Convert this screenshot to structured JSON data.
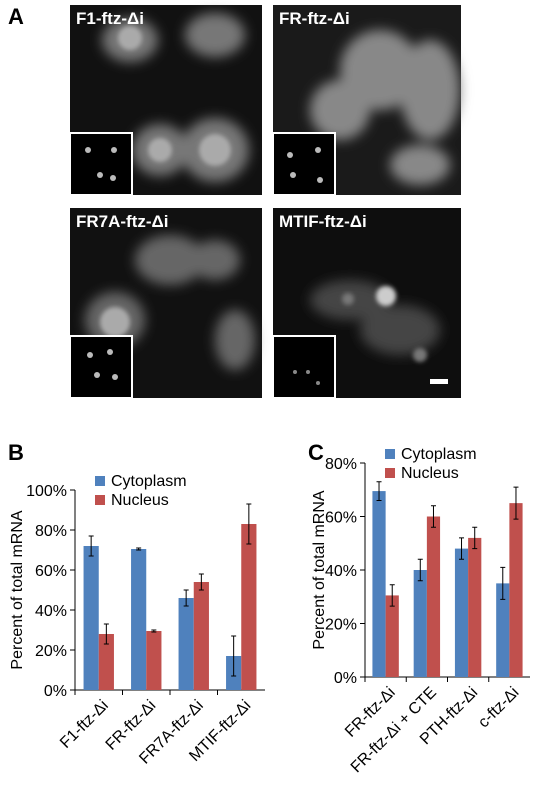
{
  "panel_a": {
    "label": "A",
    "images": [
      "F1-ftz-Δi",
      "FR-ftz-Δi",
      "FR7A-ftz-Δi",
      "MTIF-ftz-Δi"
    ]
  },
  "chart_data": [
    {
      "type": "bar",
      "panel_label": "B",
      "y_label": "Percent of total mRNA",
      "categories": [
        "F1-ftz-Δi",
        "FR-ftz-Δi",
        "FR7A-ftz-Δi",
        "MTIF-ftz-Δi"
      ],
      "series": [
        {
          "name": "Cytoplasm",
          "color": "#4f81bd",
          "values": [
            72,
            70.5,
            46,
            17
          ],
          "errors": [
            5,
            0.5,
            4,
            10
          ]
        },
        {
          "name": "Nucleus",
          "color": "#c0504d",
          "values": [
            28,
            29.5,
            54,
            83
          ],
          "errors": [
            5,
            0.5,
            4,
            10
          ]
        }
      ],
      "ylim": [
        0,
        100
      ],
      "yticks": [
        {
          "value": 0,
          "label": "0%"
        },
        {
          "value": 20,
          "label": "20%"
        },
        {
          "value": 40,
          "label": "40%"
        },
        {
          "value": 60,
          "label": "60%"
        },
        {
          "value": 80,
          "label": "80%"
        },
        {
          "value": 100,
          "label": "100%"
        }
      ],
      "legend": "top-left"
    },
    {
      "type": "bar",
      "panel_label": "C",
      "y_label": "Percent of total mRNA",
      "categories": [
        "FR-ftz-Δi",
        "FR-ftz-Δi + CTE",
        "PTH-ftz-Δi",
        "c-ftz-Δi"
      ],
      "series": [
        {
          "name": "Cytoplasm",
          "color": "#4f81bd",
          "values": [
            69.5,
            40,
            48,
            35
          ],
          "errors": [
            3.5,
            4,
            4,
            6
          ]
        },
        {
          "name": "Nucleus",
          "color": "#c0504d",
          "values": [
            30.5,
            60,
            52,
            65
          ],
          "errors": [
            4,
            4,
            4,
            6
          ]
        }
      ],
      "ylim": [
        0,
        80
      ],
      "yticks": [
        {
          "value": 0,
          "label": "0%"
        },
        {
          "value": 20,
          "label": "20%"
        },
        {
          "value": 40,
          "label": "40%"
        },
        {
          "value": 60,
          "label": "60%"
        },
        {
          "value": 80,
          "label": "80%"
        }
      ],
      "legend": "top-left"
    }
  ]
}
